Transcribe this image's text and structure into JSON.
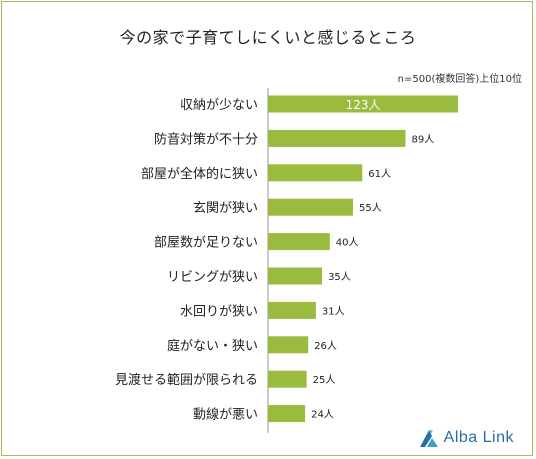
{
  "title": "今の家で子育てしにくいと感じるところ",
  "note": "n=500(複数回答)上位10位",
  "colors": {
    "bar": "#9bbb3f",
    "frame": "#9cc05a",
    "axis": "#999999",
    "logo": "#2a6ea8"
  },
  "logo": {
    "text": "Alba Link",
    "icon": "alba-link-logo-icon"
  },
  "chart_data": {
    "type": "bar",
    "orientation": "horizontal",
    "categories": [
      "収納が少ない",
      "防音対策が不十分",
      "部屋が全体的に狭い",
      "玄関が狭い",
      "部屋数が足りない",
      "リビングが狭い",
      "水回りが狭い",
      "庭がない・狭い",
      "見渡せる範囲が限られる",
      "動線が悪い"
    ],
    "values": [
      123,
      89,
      61,
      55,
      40,
      35,
      31,
      26,
      25,
      24
    ],
    "value_labels": [
      "123人",
      "89人",
      "61人",
      "55人",
      "40人",
      "35人",
      "31人",
      "26人",
      "25人",
      "24人"
    ],
    "unit": "人",
    "grid": false,
    "legend": "none"
  }
}
